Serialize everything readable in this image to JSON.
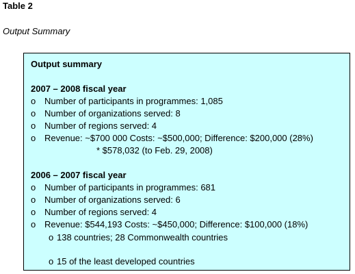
{
  "table_label": "Table 2",
  "caption": "Output Summary",
  "box": {
    "heading": "Output summary",
    "sections": [
      {
        "title": "2007 – 2008  fiscal year",
        "items": [
          "Number of participants in programmes: 1,085",
          "Number of organizations served: 8",
          "Number of regions served: 4",
          "Revenue: ~$700 000 Costs: ~$500,000;  Difference: $200,000 (28%)"
        ],
        "note": "* $578,032  (to Feb. 29, 2008)"
      },
      {
        "title": "2006 – 2007  fiscal year",
        "items": [
          "Number of participants in programmes: 681",
          "Number of organizations served: 6",
          "Number of regions served: 4",
          "Revenue: $544,193 Costs: ~$450,000;  Difference: $100,000 (18%)"
        ],
        "subitems": [
          "138 countries; 28 Commonwealth countries",
          "15 of the least developed countries"
        ]
      }
    ],
    "bullet_char": "o"
  }
}
